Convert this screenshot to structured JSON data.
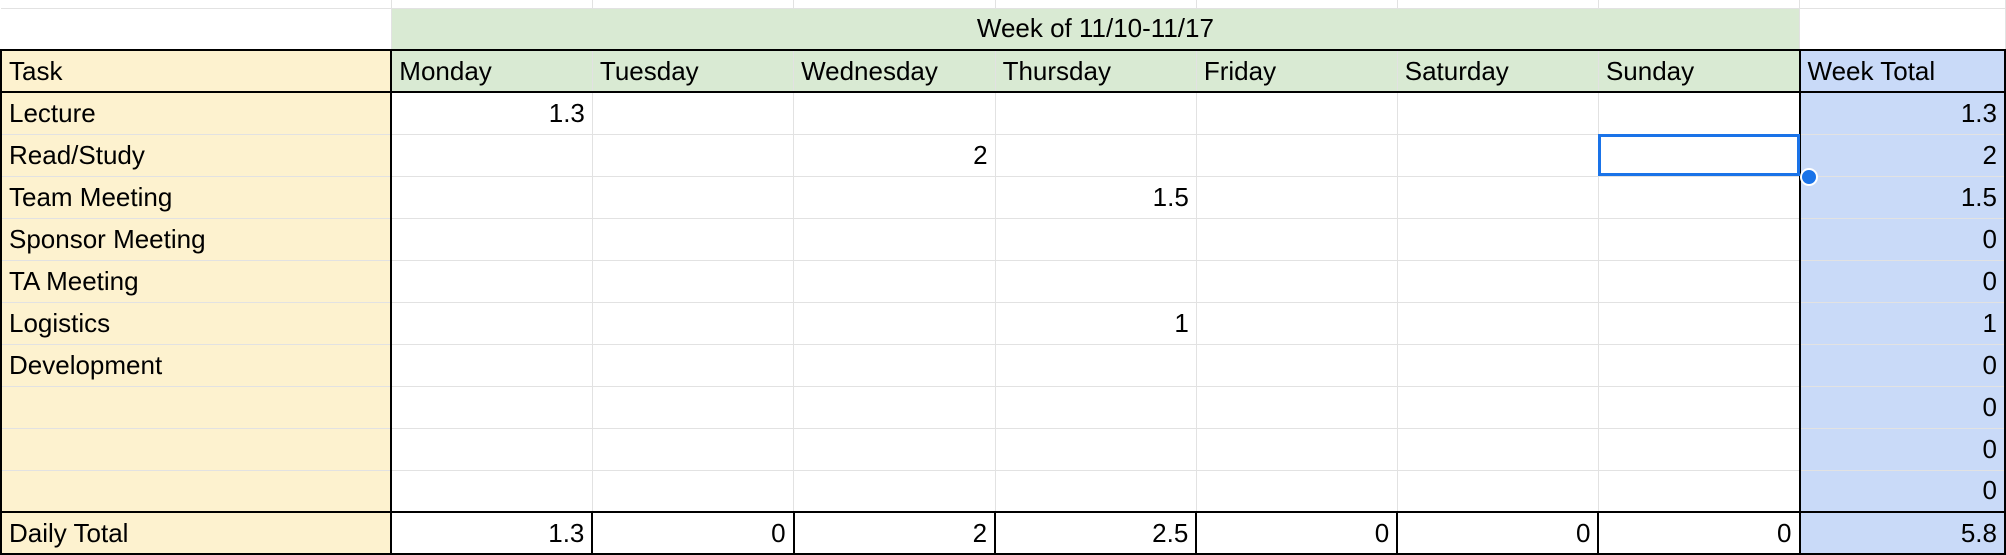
{
  "week_title": "Week of 11/10-11/17",
  "header": {
    "task": "Task",
    "days": [
      "Monday",
      "Tuesday",
      "Wednesday",
      "Thursday",
      "Friday",
      "Saturday",
      "Sunday"
    ],
    "total": "Week Total"
  },
  "rows": [
    {
      "task": "Lecture",
      "values": [
        "1.3",
        "",
        "",
        "",
        "",
        "",
        ""
      ],
      "total": "1.3"
    },
    {
      "task": "Read/Study",
      "values": [
        "",
        "",
        "2",
        "",
        "",
        "",
        ""
      ],
      "total": "2"
    },
    {
      "task": "Team Meeting",
      "values": [
        "",
        "",
        "",
        "1.5",
        "",
        "",
        ""
      ],
      "total": "1.5"
    },
    {
      "task": "Sponsor Meeting",
      "values": [
        "",
        "",
        "",
        "",
        "",
        "",
        ""
      ],
      "total": "0"
    },
    {
      "task": "TA Meeting",
      "values": [
        "",
        "",
        "",
        "",
        "",
        "",
        ""
      ],
      "total": "0"
    },
    {
      "task": "Logistics",
      "values": [
        "",
        "",
        "",
        "1",
        "",
        "",
        ""
      ],
      "total": "1"
    },
    {
      "task": "Development",
      "values": [
        "",
        "",
        "",
        "",
        "",
        "",
        ""
      ],
      "total": "0"
    },
    {
      "task": "",
      "values": [
        "",
        "",
        "",
        "",
        "",
        "",
        ""
      ],
      "total": "0"
    },
    {
      "task": "",
      "values": [
        "",
        "",
        "",
        "",
        "",
        "",
        ""
      ],
      "total": "0"
    },
    {
      "task": "",
      "values": [
        "",
        "",
        "",
        "",
        "",
        "",
        ""
      ],
      "total": "0"
    }
  ],
  "daily_total": {
    "label": "Daily Total",
    "values": [
      "1.3",
      "0",
      "2",
      "2.5",
      "0",
      "0",
      "0"
    ],
    "total": "5.8"
  },
  "colors": {
    "task_fill": "#fdf2cf",
    "day_header_fill": "#d9ead3",
    "total_fill": "#c9daf8",
    "selection": "#1a73e8"
  }
}
